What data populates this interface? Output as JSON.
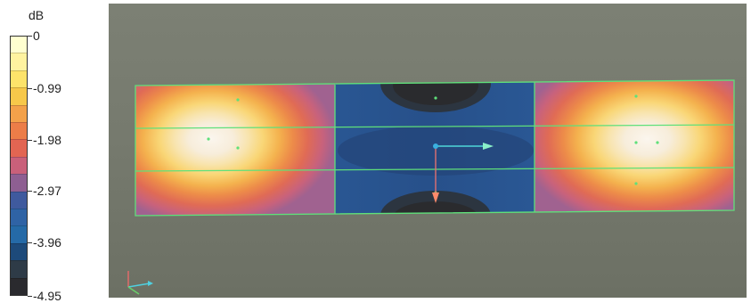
{
  "legend": {
    "unit": "dB",
    "ticks": [
      "0",
      "-0.99",
      "-1.98",
      "-2.97",
      "-3.96",
      "-4.95"
    ],
    "colors": [
      "#ffffd0",
      "#fff3a0",
      "#fde36a",
      "#f7c84a",
      "#f3a14a",
      "#ec7d48",
      "#e26552",
      "#c9607a",
      "#8e5f92",
      "#3f5a9e",
      "#2f63a5",
      "#256aa7",
      "#1d4a7a",
      "#2e3b47",
      "#2a2a2e"
    ]
  },
  "scene": {
    "background_color": "#777b6f",
    "outline_color": "#5fe07a"
  }
}
